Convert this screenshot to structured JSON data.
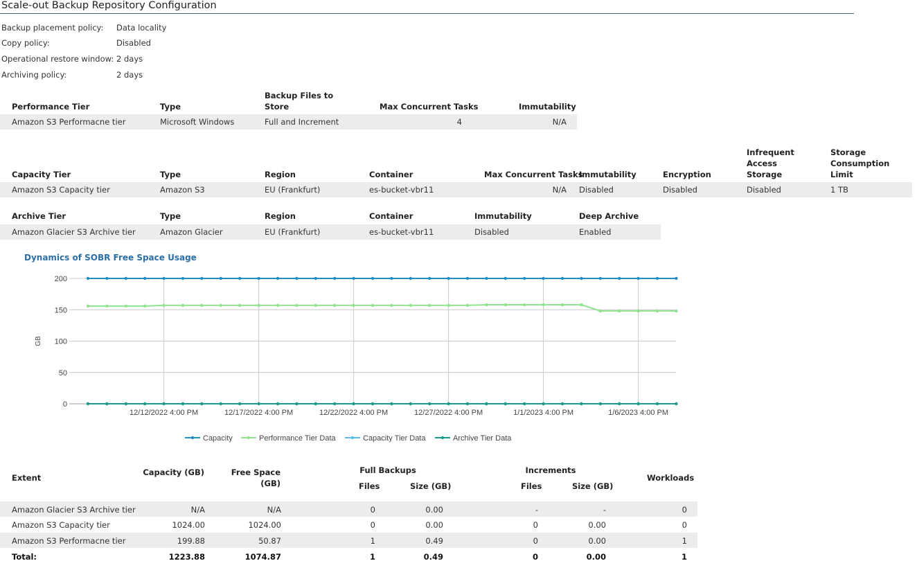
{
  "page_title": "Scale-out Backup Repository Configuration",
  "policies": [
    {
      "label": "Backup placement policy:",
      "value": "Data locality"
    },
    {
      "label": "Copy policy:",
      "value": "Disabled"
    },
    {
      "label": "Operational restore window:",
      "value": "2 days"
    },
    {
      "label": "Archiving policy:",
      "value": "2 days"
    }
  ],
  "performance_tier": {
    "headers": [
      "Performance Tier",
      "Type",
      "Backup Files to Store",
      "Max Concurrent Tasks",
      "Immutability"
    ],
    "row": [
      "Amazon S3 Performacne tier",
      "Microsoft Windows",
      "Full and Increment",
      "4",
      "N/A"
    ]
  },
  "capacity_tier": {
    "headers": [
      "Capacity Tier",
      "Type",
      "Region",
      "Container",
      "Max Concurrent Tasks",
      "Immutability",
      "Encryption",
      "Infrequent Access Storage",
      "Storage Consumption Limit"
    ],
    "row": [
      "Amazon S3 Capacity tier",
      "Amazon S3",
      "EU (Frankfurt)",
      "es-bucket-vbr11",
      "N/A",
      "Disabled",
      "Disabled",
      "Disabled",
      "1 TB"
    ]
  },
  "archive_tier": {
    "headers": [
      "Archive Tier",
      "Type",
      "Region",
      "Container",
      "Immutability",
      "Deep Archive"
    ],
    "row": [
      "Amazon Glacier S3 Archive tier",
      "Amazon Glacier",
      "EU (Frankfurt)",
      "es-bucket-vbr11",
      "Disabled",
      "Enabled"
    ]
  },
  "chart_data": {
    "type": "line",
    "title": "Dynamics of SOBR Free Space Usage",
    "ylabel": "GB",
    "ylim": [
      0,
      200
    ],
    "yticks": [
      0,
      50,
      100,
      150,
      200
    ],
    "xtick_labels": [
      "12/12/2022 4:00 PM",
      "12/17/2022 4:00 PM",
      "12/22/2022 4:00 PM",
      "12/27/2022 4:00 PM",
      "1/1/2023 4:00 PM",
      "1/6/2023 4:00 PM"
    ],
    "x_start_date": "12/12/2022 4:00 PM",
    "x_points": [
      "12/8/2022",
      "12/9/2022",
      "12/10/2022",
      "12/11/2022",
      "12/12/2022",
      "12/13/2022",
      "12/14/2022",
      "12/15/2022",
      "12/16/2022",
      "12/17/2022",
      "12/18/2022",
      "12/19/2022",
      "12/20/2022",
      "12/21/2022",
      "12/22/2022",
      "12/23/2022",
      "12/24/2022",
      "12/25/2022",
      "12/26/2022",
      "12/27/2022",
      "12/28/2022",
      "12/29/2022",
      "12/30/2022",
      "12/31/2022",
      "1/1/2023",
      "1/2/2023",
      "1/3/2023",
      "1/4/2023",
      "1/5/2023",
      "1/6/2023",
      "1/7/2023",
      "1/8/2023"
    ],
    "series": [
      {
        "name": "Capacity",
        "color": "#1f8dc4",
        "values": [
          200,
          200,
          200,
          200,
          200,
          200,
          200,
          200,
          200,
          200,
          200,
          200,
          200,
          200,
          200,
          200,
          200,
          200,
          200,
          200,
          200,
          200,
          200,
          200,
          200,
          200,
          200,
          200,
          200,
          200,
          200,
          200
        ]
      },
      {
        "name": "Performance Tier Data",
        "color": "#90e28e",
        "values": [
          156,
          156,
          156,
          156,
          157,
          157,
          157,
          157,
          157,
          157,
          157,
          157,
          157,
          157,
          157,
          157,
          157,
          157,
          157,
          157,
          157,
          158,
          158,
          158,
          158,
          158,
          158,
          148,
          148,
          148,
          148,
          148
        ]
      },
      {
        "name": "Capacity Tier Data",
        "color": "#5bbde8",
        "values": [
          0,
          0,
          0,
          0,
          0,
          0,
          0,
          0,
          0,
          0,
          0,
          0,
          0,
          0,
          0,
          0,
          0,
          0,
          0,
          0,
          0,
          0,
          0,
          0,
          0,
          0,
          0,
          0,
          0,
          0,
          0,
          0
        ]
      },
      {
        "name": "Archive Tier Data",
        "color": "#1a9a8f",
        "values": [
          0,
          0,
          0,
          0,
          0,
          0,
          0,
          0,
          0,
          0,
          0,
          0,
          0,
          0,
          0,
          0,
          0,
          0,
          0,
          0,
          0,
          0,
          0,
          0,
          0,
          0,
          0,
          0,
          0,
          0,
          0,
          0
        ]
      }
    ],
    "grid": true,
    "legend_position": "bottom"
  },
  "extents": {
    "headers": {
      "extent": "Extent",
      "capacity": "Capacity (GB)",
      "free_space": "Free Space (GB)",
      "full_backups": "Full Backups",
      "increments": "Increments",
      "files": "Files",
      "size": "Size (GB)",
      "workloads": "Workloads"
    },
    "rows": [
      {
        "extent": "Amazon Glacier S3 Archive tier",
        "capacity": "N/A",
        "free": "N/A",
        "full_files": "0",
        "full_size": "0.00",
        "inc_files": "-",
        "inc_size": "-",
        "workloads": "0"
      },
      {
        "extent": "Amazon S3 Capacity tier",
        "capacity": "1024.00",
        "free": "1024.00",
        "full_files": "0",
        "full_size": "0.00",
        "inc_files": "0",
        "inc_size": "0.00",
        "workloads": "0"
      },
      {
        "extent": "Amazon S3 Performacne tier",
        "capacity": "199.88",
        "free": "50.87",
        "full_files": "1",
        "full_size": "0.49",
        "inc_files": "0",
        "inc_size": "0.00",
        "workloads": "1"
      }
    ],
    "total": {
      "extent": "Total:",
      "capacity": "1223.88",
      "free": "1074.87",
      "full_files": "1",
      "full_size": "0.49",
      "inc_files": "0",
      "inc_size": "0.00",
      "workloads": "1"
    }
  }
}
